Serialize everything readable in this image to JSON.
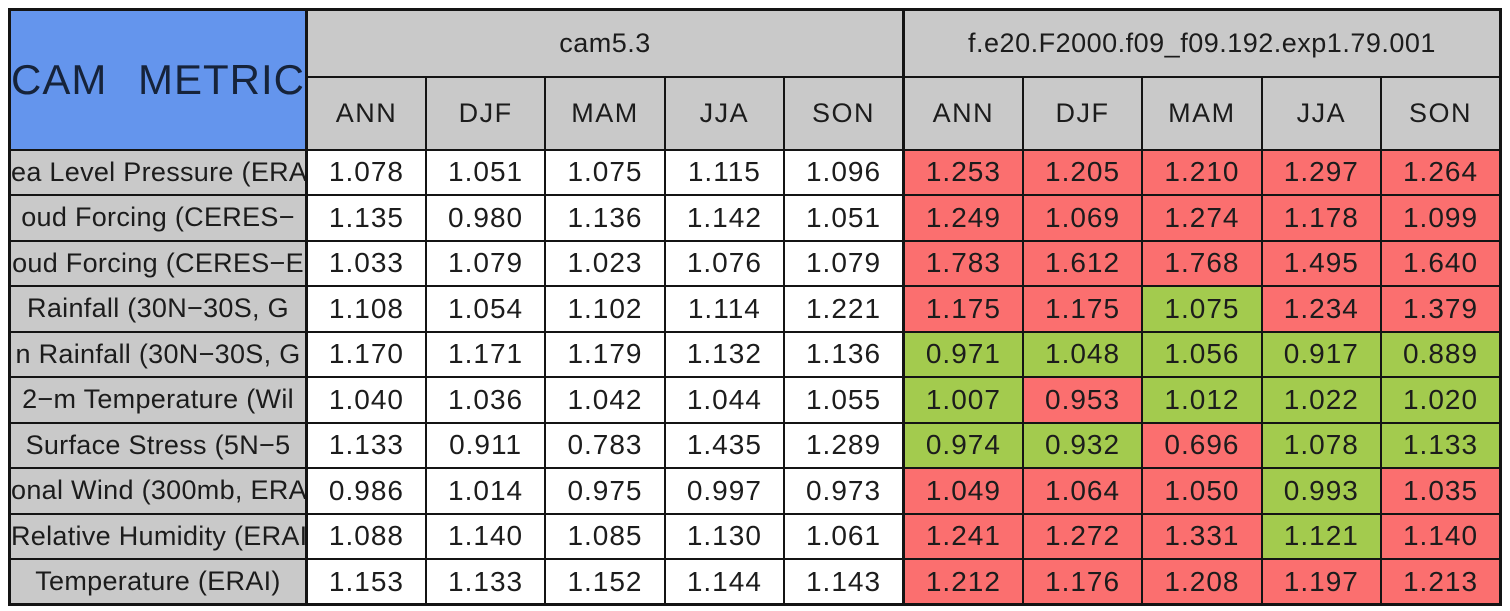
{
  "colors": {
    "red": "#FB6F6F",
    "green": "#A3CB4E",
    "header_gray": "#C9C9C9",
    "corner_blue": "#6495ED",
    "control_cell_bg": "#FFFFFF",
    "border": "#141414"
  },
  "chart_data": {
    "type": "table",
    "title": "CAM METRICS",
    "column_groups": [
      {
        "name": "cam5.3"
      },
      {
        "name": "f.e20.F2000.f09_f09.192.exp1.79.001"
      }
    ],
    "seasons": [
      "ANN",
      "DJF",
      "MAM",
      "JJA",
      "SON"
    ],
    "rows": [
      {
        "label": "ea Level Pressure (ERA",
        "control": [
          "1.078",
          "1.051",
          "1.075",
          "1.115",
          "1.096"
        ],
        "test": [
          "1.253",
          "1.205",
          "1.210",
          "1.297",
          "1.264"
        ],
        "test_colors": [
          "red",
          "red",
          "red",
          "red",
          "red"
        ]
      },
      {
        "label": "oud Forcing (CERES−",
        "control": [
          "1.135",
          "0.980",
          "1.136",
          "1.142",
          "1.051"
        ],
        "test": [
          "1.249",
          "1.069",
          "1.274",
          "1.178",
          "1.099"
        ],
        "test_colors": [
          "red",
          "red",
          "red",
          "red",
          "red"
        ]
      },
      {
        "label": "oud Forcing (CERES−E",
        "control": [
          "1.033",
          "1.079",
          "1.023",
          "1.076",
          "1.079"
        ],
        "test": [
          "1.783",
          "1.612",
          "1.768",
          "1.495",
          "1.640"
        ],
        "test_colors": [
          "red",
          "red",
          "red",
          "red",
          "red"
        ]
      },
      {
        "label": "Rainfall (30N−30S, G",
        "control": [
          "1.108",
          "1.054",
          "1.102",
          "1.114",
          "1.221"
        ],
        "test": [
          "1.175",
          "1.175",
          "1.075",
          "1.234",
          "1.379"
        ],
        "test_colors": [
          "red",
          "red",
          "green",
          "red",
          "red"
        ]
      },
      {
        "label": "n Rainfall (30N−30S, G",
        "control": [
          "1.170",
          "1.171",
          "1.179",
          "1.132",
          "1.136"
        ],
        "test": [
          "0.971",
          "1.048",
          "1.056",
          "0.917",
          "0.889"
        ],
        "test_colors": [
          "green",
          "green",
          "green",
          "green",
          "green"
        ]
      },
      {
        "label": "2−m Temperature (Wil",
        "control": [
          "1.040",
          "1.036",
          "1.042",
          "1.044",
          "1.055"
        ],
        "test": [
          "1.007",
          "0.953",
          "1.012",
          "1.022",
          "1.020"
        ],
        "test_colors": [
          "green",
          "red",
          "green",
          "green",
          "green"
        ]
      },
      {
        "label": "Surface Stress (5N−5",
        "control": [
          "1.133",
          "0.911",
          "0.783",
          "1.435",
          "1.289"
        ],
        "test": [
          "0.974",
          "0.932",
          "0.696",
          "1.078",
          "1.133"
        ],
        "test_colors": [
          "green",
          "green",
          "red",
          "green",
          "green"
        ]
      },
      {
        "label": "onal Wind (300mb, ERA",
        "control": [
          "0.986",
          "1.014",
          "0.975",
          "0.997",
          "0.973"
        ],
        "test": [
          "1.049",
          "1.064",
          "1.050",
          "0.993",
          "1.035"
        ],
        "test_colors": [
          "red",
          "red",
          "red",
          "green",
          "red"
        ]
      },
      {
        "label": "Relative Humidity (ERAI",
        "control": [
          "1.088",
          "1.140",
          "1.085",
          "1.130",
          "1.061"
        ],
        "test": [
          "1.241",
          "1.272",
          "1.331",
          "1.121",
          "1.140"
        ],
        "test_colors": [
          "red",
          "red",
          "red",
          "green",
          "red"
        ]
      },
      {
        "label": "Temperature (ERAI)",
        "control": [
          "1.153",
          "1.133",
          "1.152",
          "1.144",
          "1.143"
        ],
        "test": [
          "1.212",
          "1.176",
          "1.208",
          "1.197",
          "1.213"
        ],
        "test_colors": [
          "red",
          "red",
          "red",
          "red",
          "red"
        ]
      }
    ]
  }
}
